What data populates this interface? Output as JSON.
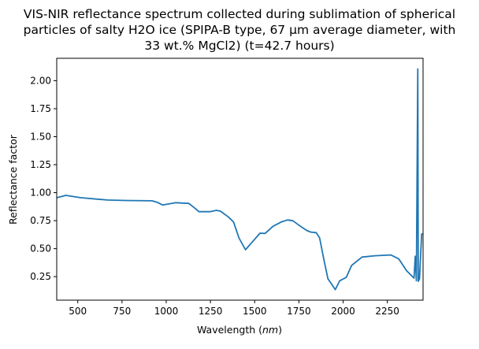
{
  "chart_data": {
    "type": "line",
    "title": [
      "VIS-NIR reflectance spectrum collected during sublimation of spherical",
      "particles of salty H2O ice (SPIPA-B type, 67 µm average diameter, with",
      "33 wt.% MgCl2) (t=42.7 hours)"
    ],
    "xlabel": "Wavelength (",
    "xlabel_unit": "nm",
    "xlabel_end": ")",
    "ylabel": "Reflectance factor",
    "xlim": [
      381,
      2452
    ],
    "ylim": [
      0.04,
      2.2
    ],
    "xticks": [
      500,
      750,
      1000,
      1250,
      1500,
      1750,
      2000,
      2250
    ],
    "xtick_labels": [
      "500",
      "750",
      "1000",
      "1250",
      "1500",
      "1750",
      "2000",
      "2250"
    ],
    "yticks": [
      0.25,
      0.5,
      0.75,
      1.0,
      1.25,
      1.5,
      1.75,
      2.0
    ],
    "ytick_labels": [
      "0.25",
      "0.50",
      "0.75",
      "1.00",
      "1.25",
      "1.50",
      "1.75",
      "2.00"
    ],
    "grid": false,
    "color": "#1f77b4",
    "x": [
      381,
      432,
      519,
      668,
      772,
      920,
      950,
      980,
      1054,
      1128,
      1158,
      1185,
      1247,
      1284,
      1306,
      1351,
      1381,
      1411,
      1448,
      1492,
      1530,
      1559,
      1604,
      1649,
      1686,
      1716,
      1753,
      1795,
      1818,
      1848,
      1867,
      1892,
      1914,
      1956,
      1981,
      2018,
      2048,
      2107,
      2181,
      2270,
      2315,
      2359,
      2401,
      2408,
      2414,
      2422,
      2425,
      2432,
      2444,
      2452
    ],
    "y": [
      0.955,
      0.976,
      0.955,
      0.934,
      0.93,
      0.927,
      0.913,
      0.89,
      0.91,
      0.904,
      0.866,
      0.83,
      0.83,
      0.842,
      0.835,
      0.784,
      0.737,
      0.596,
      0.49,
      0.57,
      0.638,
      0.636,
      0.7,
      0.737,
      0.756,
      0.749,
      0.706,
      0.662,
      0.648,
      0.643,
      0.596,
      0.396,
      0.232,
      0.134,
      0.213,
      0.244,
      0.35,
      0.425,
      0.437,
      0.444,
      0.408,
      0.303,
      0.237,
      0.432,
      0.213,
      2.105,
      0.208,
      0.232,
      0.63,
      0.63
    ]
  }
}
